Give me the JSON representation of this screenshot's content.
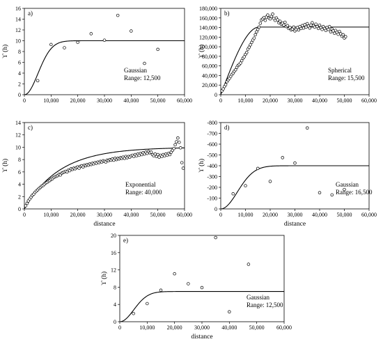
{
  "chart_data": [
    {
      "type": "scatter",
      "panel_label": "a)",
      "model": "Gaussian",
      "range_text": "Range: 12,500",
      "xlabel": "",
      "ylabel": "ϒ (h)",
      "xlim": [
        0,
        60000
      ],
      "ylim": [
        0,
        16
      ],
      "xticks": [
        0,
        10000,
        20000,
        30000,
        40000,
        50000,
        60000
      ],
      "xtick_labels": [
        "0",
        "10,000",
        "20,000",
        "30,000",
        "40,000",
        "50,000",
        "60,000"
      ],
      "yticks": [
        0,
        2,
        4,
        6,
        8,
        10,
        12,
        14,
        16
      ],
      "ytick_labels": [
        "0",
        "2",
        "4",
        "6",
        "8",
        "10",
        "12",
        "14",
        "16"
      ],
      "grid": false,
      "points": [
        [
          5000,
          2.6
        ],
        [
          10000,
          9.3
        ],
        [
          15000,
          8.7
        ],
        [
          20000,
          9.7
        ],
        [
          25000,
          11.3
        ],
        [
          30000,
          10.1
        ],
        [
          35000,
          14.7
        ],
        [
          40000,
          11.8
        ],
        [
          45000,
          5.8
        ],
        [
          50000,
          8.4
        ]
      ],
      "fit": {
        "kind": "gaussian",
        "sill": 10.0,
        "range": 12500
      }
    },
    {
      "type": "scatter",
      "panel_label": "b)",
      "model": "Spherical",
      "range_text": "Range: 15,500",
      "xlabel": "",
      "ylabel": "ϒ (h)",
      "xlim": [
        0,
        60000
      ],
      "ylim": [
        0,
        180000
      ],
      "xticks": [
        0,
        10000,
        20000,
        30000,
        40000,
        50000,
        60000
      ],
      "xtick_labels": [
        "0",
        "10,000",
        "20,000",
        "30,000",
        "40,000",
        "50,000",
        "60,000"
      ],
      "yticks": [
        0,
        20000,
        40000,
        60000,
        80000,
        100000,
        120000,
        140000,
        160000,
        180000
      ],
      "ytick_labels": [
        "0",
        "20,000",
        "40,000",
        "60,000",
        "80,000",
        "100,000",
        "120,000",
        "140,000",
        "160,000",
        "180,000"
      ],
      "grid": false,
      "points": [
        [
          500,
          8000
        ],
        [
          1000,
          12000
        ],
        [
          1500,
          17000
        ],
        [
          2000,
          21000
        ],
        [
          2500,
          27000
        ],
        [
          3000,
          31000
        ],
        [
          3500,
          34000
        ],
        [
          4000,
          38000
        ],
        [
          4500,
          42000
        ],
        [
          5000,
          45000
        ],
        [
          5500,
          49000
        ],
        [
          6000,
          52000
        ],
        [
          6500,
          57000
        ],
        [
          7000,
          61000
        ],
        [
          7500,
          63000
        ],
        [
          8000,
          66000
        ],
        [
          8500,
          71000
        ],
        [
          9000,
          76000
        ],
        [
          9500,
          79000
        ],
        [
          10000,
          84000
        ],
        [
          10500,
          88000
        ],
        [
          11000,
          95000
        ],
        [
          11500,
          99000
        ],
        [
          12000,
          104000
        ],
        [
          12500,
          109000
        ],
        [
          13000,
          114000
        ],
        [
          13500,
          118000
        ],
        [
          14000,
          125000
        ],
        [
          14500,
          131000
        ],
        [
          15000,
          136000
        ],
        [
          15500,
          141000
        ],
        [
          16000,
          149000
        ],
        [
          16500,
          156000
        ],
        [
          17000,
          158000
        ],
        [
          17500,
          161000
        ],
        [
          18000,
          155000
        ],
        [
          18500,
          162000
        ],
        [
          19000,
          166000
        ],
        [
          19500,
          160000
        ],
        [
          20000,
          158000
        ],
        [
          20500,
          163000
        ],
        [
          21000,
          168000
        ],
        [
          21500,
          159000
        ],
        [
          22000,
          155000
        ],
        [
          22500,
          160000
        ],
        [
          23000,
          156000
        ],
        [
          23500,
          150000
        ],
        [
          24000,
          153000
        ],
        [
          24500,
          147000
        ],
        [
          25000,
          149000
        ],
        [
          25500,
          145000
        ],
        [
          26000,
          151000
        ],
        [
          26500,
          142000
        ],
        [
          27000,
          144000
        ],
        [
          27500,
          138000
        ],
        [
          28000,
          140000
        ],
        [
          28500,
          135000
        ],
        [
          29000,
          137000
        ],
        [
          29500,
          141000
        ],
        [
          30000,
          133000
        ],
        [
          30500,
          136000
        ],
        [
          31000,
          140000
        ],
        [
          31500,
          135000
        ],
        [
          32000,
          142000
        ],
        [
          32500,
          138000
        ],
        [
          33000,
          144000
        ],
        [
          33500,
          139000
        ],
        [
          34000,
          146000
        ],
        [
          34500,
          141000
        ],
        [
          35000,
          148000
        ],
        [
          35500,
          143000
        ],
        [
          36000,
          139000
        ],
        [
          36500,
          145000
        ],
        [
          37000,
          150000
        ],
        [
          37500,
          144000
        ],
        [
          38000,
          141000
        ],
        [
          38500,
          147000
        ],
        [
          39000,
          142000
        ],
        [
          39500,
          138000
        ],
        [
          40000,
          145000
        ],
        [
          40500,
          140000
        ],
        [
          41000,
          136000
        ],
        [
          41500,
          142000
        ],
        [
          42000,
          138000
        ],
        [
          42500,
          134000
        ],
        [
          43000,
          140000
        ],
        [
          43500,
          136000
        ],
        [
          44000,
          142000
        ],
        [
          44500,
          131000
        ],
        [
          45000,
          137000
        ],
        [
          45500,
          133000
        ],
        [
          46000,
          128000
        ],
        [
          46500,
          134000
        ],
        [
          47000,
          130000
        ],
        [
          47500,
          126000
        ],
        [
          48000,
          132000
        ],
        [
          48500,
          127000
        ],
        [
          49000,
          122000
        ],
        [
          49500,
          125000
        ],
        [
          50000,
          118000
        ],
        [
          50500,
          121000
        ]
      ],
      "fit": {
        "kind": "spherical",
        "sill": 141000,
        "range": 15500
      }
    },
    {
      "type": "scatter",
      "panel_label": "c)",
      "model": "Exponential",
      "range_text": "Range: 40,000",
      "xlabel": "distance",
      "ylabel": "ϒ (h)",
      "xlim": [
        0,
        60000
      ],
      "ylim": [
        0,
        14
      ],
      "xticks": [
        0,
        10000,
        20000,
        30000,
        40000,
        50000,
        60000
      ],
      "xtick_labels": [
        "0",
        "10,000",
        "20,000",
        "30,000",
        "40,000",
        "50,000",
        "60,000"
      ],
      "yticks": [
        0,
        2,
        4,
        6,
        8,
        10,
        12,
        14
      ],
      "ytick_labels": [
        "0",
        "2",
        "4",
        "6",
        "8",
        "10",
        "12",
        "14"
      ],
      "grid": false,
      "points": [
        [
          500,
          0.5
        ],
        [
          1000,
          0.9
        ],
        [
          1500,
          1.3
        ],
        [
          2000,
          1.6
        ],
        [
          2500,
          1.9
        ],
        [
          3000,
          2.2
        ],
        [
          3500,
          2.4
        ],
        [
          4000,
          2.7
        ],
        [
          4500,
          2.9
        ],
        [
          5000,
          3.1
        ],
        [
          5500,
          3.3
        ],
        [
          6000,
          3.5
        ],
        [
          6500,
          3.7
        ],
        [
          7000,
          3.8
        ],
        [
          7500,
          4.0
        ],
        [
          8000,
          4.2
        ],
        [
          8500,
          4.3
        ],
        [
          9000,
          4.5
        ],
        [
          9500,
          4.6
        ],
        [
          10000,
          4.8
        ],
        [
          10500,
          4.9
        ],
        [
          11000,
          5.1
        ],
        [
          11500,
          5.2
        ],
        [
          12000,
          5.3
        ],
        [
          12500,
          5.4
        ],
        [
          13000,
          5.6
        ],
        [
          13500,
          5.5
        ],
        [
          14000,
          5.8
        ],
        [
          14500,
          5.9
        ],
        [
          15000,
          6.0
        ],
        [
          15500,
          6.1
        ],
        [
          16000,
          6.0
        ],
        [
          16500,
          6.3
        ],
        [
          17000,
          6.2
        ],
        [
          17500,
          6.5
        ],
        [
          18000,
          6.4
        ],
        [
          18500,
          6.6
        ],
        [
          19000,
          6.5
        ],
        [
          19500,
          6.7
        ],
        [
          20000,
          6.8
        ],
        [
          20500,
          6.6
        ],
        [
          21000,
          6.9
        ],
        [
          21500,
          7.0
        ],
        [
          22000,
          6.8
        ],
        [
          22500,
          7.1
        ],
        [
          23000,
          7.0
        ],
        [
          23500,
          7.2
        ],
        [
          24000,
          7.1
        ],
        [
          24500,
          7.3
        ],
        [
          25000,
          7.2
        ],
        [
          25500,
          7.4
        ],
        [
          26000,
          7.3
        ],
        [
          26500,
          7.5
        ],
        [
          27000,
          7.4
        ],
        [
          27500,
          7.6
        ],
        [
          28000,
          7.5
        ],
        [
          28500,
          7.7
        ],
        [
          29000,
          7.6
        ],
        [
          29500,
          7.8
        ],
        [
          30000,
          7.7
        ],
        [
          30500,
          7.6
        ],
        [
          31000,
          7.9
        ],
        [
          31500,
          7.8
        ],
        [
          32000,
          8.0
        ],
        [
          32500,
          7.9
        ],
        [
          33000,
          8.1
        ],
        [
          33500,
          7.9
        ],
        [
          34000,
          8.2
        ],
        [
          34500,
          8.0
        ],
        [
          35000,
          8.2
        ],
        [
          35500,
          8.1
        ],
        [
          36000,
          8.3
        ],
        [
          36500,
          8.2
        ],
        [
          37000,
          8.4
        ],
        [
          37500,
          8.2
        ],
        [
          38000,
          8.5
        ],
        [
          38500,
          8.3
        ],
        [
          39000,
          8.5
        ],
        [
          39500,
          8.4
        ],
        [
          40000,
          8.6
        ],
        [
          40500,
          8.7
        ],
        [
          41000,
          8.5
        ],
        [
          41500,
          8.8
        ],
        [
          42000,
          8.6
        ],
        [
          42500,
          8.9
        ],
        [
          43000,
          8.7
        ],
        [
          43500,
          9.0
        ],
        [
          44000,
          8.8
        ],
        [
          44500,
          9.1
        ],
        [
          45000,
          8.9
        ],
        [
          45500,
          9.2
        ],
        [
          46000,
          9.0
        ],
        [
          46500,
          9.3
        ],
        [
          47000,
          9.1
        ],
        [
          47500,
          9.2
        ],
        [
          48000,
          8.8
        ],
        [
          48500,
          8.6
        ],
        [
          49000,
          8.9
        ],
        [
          49500,
          8.5
        ],
        [
          50000,
          8.8
        ],
        [
          50500,
          8.4
        ],
        [
          51000,
          8.7
        ],
        [
          51500,
          8.5
        ],
        [
          52000,
          8.8
        ],
        [
          52500,
          8.6
        ],
        [
          53000,
          8.9
        ],
        [
          53500,
          8.7
        ],
        [
          54000,
          9.0
        ],
        [
          54500,
          8.8
        ],
        [
          55000,
          9.2
        ],
        [
          55500,
          9.5
        ],
        [
          56000,
          9.8
        ],
        [
          56500,
          10.4
        ],
        [
          57000,
          10.9
        ],
        [
          57500,
          11.5
        ],
        [
          58000,
          10.8
        ],
        [
          58500,
          9.9
        ],
        [
          59000,
          7.5
        ],
        [
          59500,
          6.6
        ]
      ],
      "fit": {
        "kind": "exponential",
        "sill": 10.0,
        "range": 40000
      }
    },
    {
      "type": "scatter",
      "panel_label": "d)",
      "model": "Gaussian",
      "range_text": "Range: 16,500",
      "xlabel": "distance",
      "ylabel": "ϒ (h)",
      "xlim": [
        0,
        60000
      ],
      "ylim": [
        0,
        -800
      ],
      "xticks": [
        0,
        10000,
        20000,
        30000,
        40000,
        50000,
        60000
      ],
      "xtick_labels": [
        "0",
        "10,000",
        "20,000",
        "30,000",
        "40,000",
        "50,000",
        "60,000"
      ],
      "yticks": [
        0,
        -100,
        -200,
        -300,
        -400,
        -500,
        -600,
        -700,
        -800
      ],
      "ytick_labels": [
        "0",
        "-100",
        "-200",
        "-300",
        "-400",
        "-500",
        "-600",
        "-700",
        "-800"
      ],
      "grid": false,
      "points": [
        [
          5000,
          -140
        ],
        [
          10000,
          -215
        ],
        [
          15000,
          -375
        ],
        [
          20000,
          -255
        ],
        [
          25000,
          -475
        ],
        [
          30000,
          -425
        ],
        [
          35000,
          -750
        ],
        [
          40000,
          -150
        ],
        [
          45000,
          -130
        ],
        [
          50000,
          -180
        ]
      ],
      "fit": {
        "kind": "gaussian",
        "sill": -400,
        "range": 16500
      }
    },
    {
      "type": "scatter",
      "panel_label": "e)",
      "model": "Gaussian",
      "range_text": "Range: 12,500",
      "xlabel": "distance",
      "ylabel": "ϒ (h)",
      "xlim": [
        0,
        60000
      ],
      "ylim": [
        0,
        20
      ],
      "xticks": [
        0,
        10000,
        20000,
        30000,
        40000,
        50000,
        60000
      ],
      "xtick_labels": [
        "0",
        "10,000",
        "20,000",
        "30,000",
        "40,000",
        "50,000",
        "60,000"
      ],
      "yticks": [
        0,
        4,
        8,
        12,
        16,
        20
      ],
      "ytick_labels": [
        "0",
        "4",
        "8",
        "12",
        "16",
        "20"
      ],
      "grid": false,
      "points": [
        [
          5000,
          1.9
        ],
        [
          10000,
          4.2
        ],
        [
          15000,
          7.3
        ],
        [
          20000,
          11.1
        ],
        [
          25000,
          8.8
        ],
        [
          30000,
          7.9
        ],
        [
          35000,
          19.5
        ],
        [
          40000,
          2.3
        ],
        [
          47000,
          13.3
        ]
      ],
      "fit": {
        "kind": "gaussian",
        "sill": 7.0,
        "range": 12500
      }
    }
  ]
}
